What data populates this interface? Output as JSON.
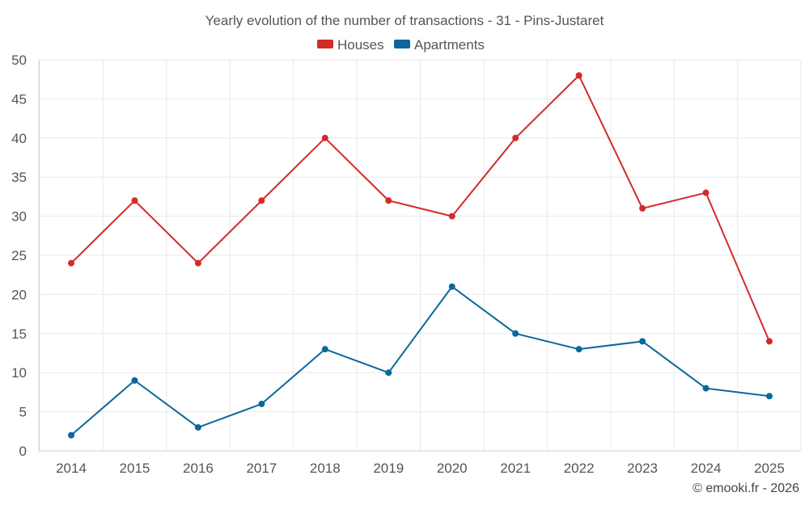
{
  "chart_data": {
    "type": "line",
    "title": "Yearly evolution of the number of transactions - 31 - Pins-Justaret",
    "categories": [
      "2014",
      "2015",
      "2016",
      "2017",
      "2018",
      "2019",
      "2020",
      "2021",
      "2022",
      "2023",
      "2024",
      "2025"
    ],
    "series": [
      {
        "name": "Houses",
        "color": "#d42a2a",
        "values": [
          24,
          32,
          24,
          32,
          40,
          32,
          30,
          40,
          48,
          31,
          33,
          14
        ]
      },
      {
        "name": "Apartments",
        "color": "#0a679c",
        "values": [
          2,
          9,
          3,
          6,
          13,
          10,
          21,
          15,
          13,
          14,
          8,
          7
        ]
      }
    ],
    "ylim": [
      0,
      50
    ],
    "yticks": [
      0,
      5,
      10,
      15,
      20,
      25,
      30,
      35,
      40,
      45,
      50
    ],
    "grid": true,
    "legend": "top-center",
    "xlabel": "",
    "ylabel": ""
  },
  "credit": "© emooki.fr - 2026"
}
